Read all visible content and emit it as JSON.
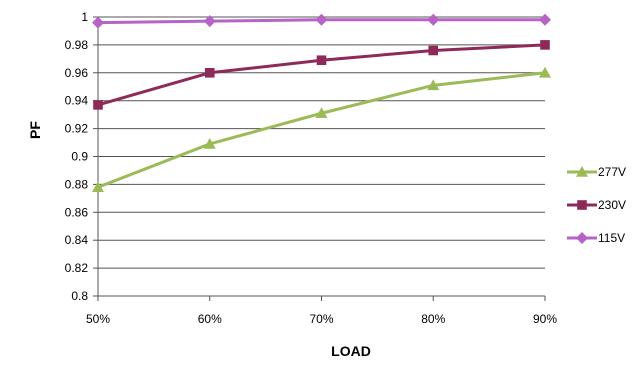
{
  "chart_data": {
    "type": "line",
    "title": "",
    "xlabel": "LOAD",
    "ylabel": "PF",
    "categories": [
      "50%",
      "60%",
      "70%",
      "80%",
      "90%"
    ],
    "ylim": [
      0.8,
      1.0
    ],
    "yticks": [
      "1",
      "0.98",
      "0.96",
      "0.94",
      "0.92",
      "0.9",
      "0.88",
      "0.86",
      "0.84",
      "0.82",
      "0.8"
    ],
    "grid": true,
    "legend_position": "right",
    "series": [
      {
        "name": "277V",
        "values": [
          0.878,
          0.909,
          0.931,
          0.951,
          0.96
        ],
        "color": "#9bbb59",
        "marker": "triangle"
      },
      {
        "name": "230V",
        "values": [
          0.937,
          0.96,
          0.969,
          0.976,
          0.98
        ],
        "color": "#8e2a5a",
        "marker": "square"
      },
      {
        "name": "115V",
        "values": [
          0.996,
          0.997,
          0.998,
          0.998,
          0.998
        ],
        "color": "#b563c5",
        "marker": "diamond"
      }
    ]
  }
}
